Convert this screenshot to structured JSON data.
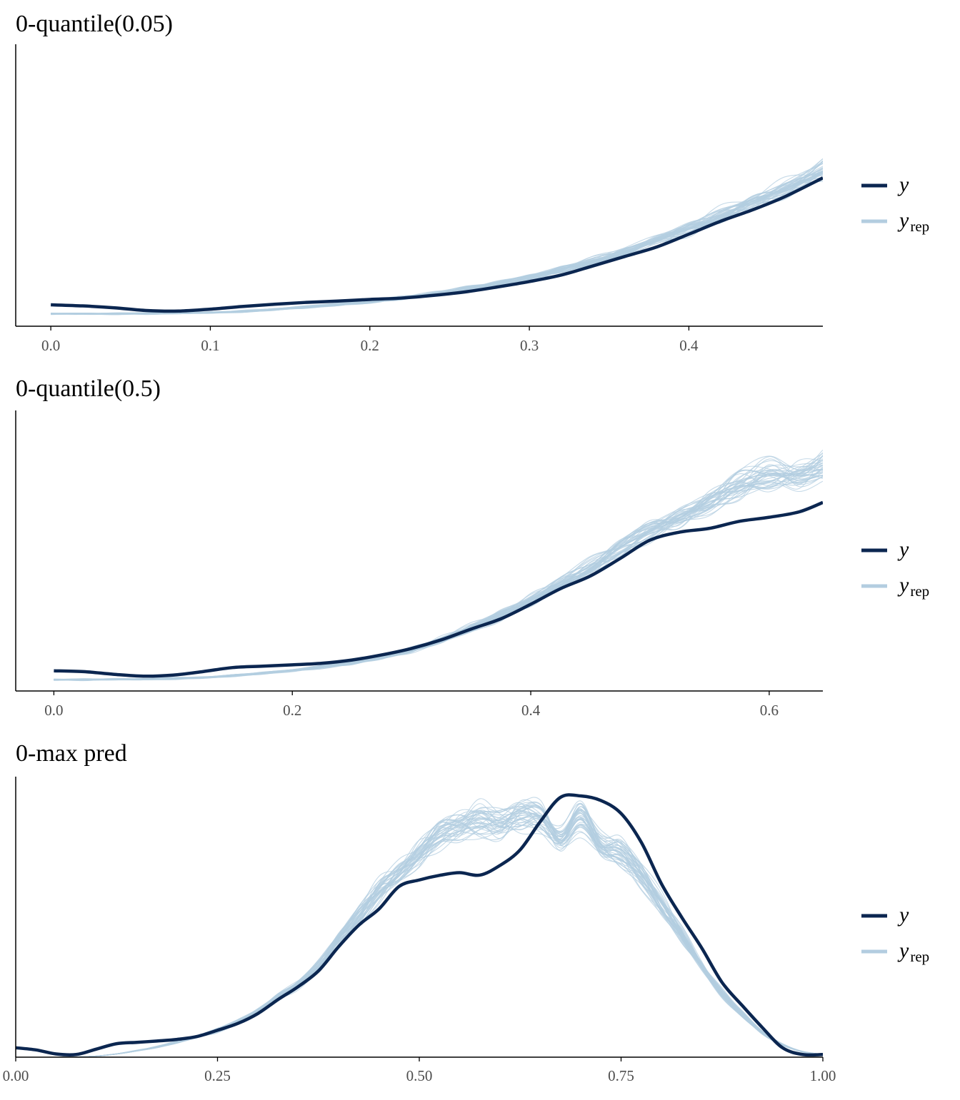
{
  "colors": {
    "y": "#0b2650",
    "yrep": "#b3cde0",
    "axis": "#000000",
    "tick_text": "#4d4d4d"
  },
  "legend": {
    "y_label": "y",
    "yrep_base": "y",
    "yrep_sub": "rep"
  },
  "chart_data": [
    {
      "type": "line",
      "title": "0-quantile(0.05)",
      "xlabel": "",
      "ylabel": "",
      "xlim": [
        -0.022,
        0.484
      ],
      "ylim": [
        0,
        1
      ],
      "xticks": [
        0.0,
        0.1,
        0.2,
        0.3,
        0.4
      ],
      "tick_labels": [
        "0.0",
        "0.1",
        "0.2",
        "0.3",
        "0.4"
      ],
      "legend_position": "right",
      "grid": false,
      "series": [
        {
          "name": "y",
          "x": [
            0.0,
            0.02,
            0.04,
            0.06,
            0.08,
            0.1,
            0.12,
            0.14,
            0.16,
            0.18,
            0.2,
            0.22,
            0.24,
            0.26,
            0.28,
            0.3,
            0.32,
            0.34,
            0.36,
            0.38,
            0.4,
            0.42,
            0.44,
            0.46,
            0.484
          ],
          "y": [
            0.079,
            0.075,
            0.068,
            0.058,
            0.056,
            0.063,
            0.073,
            0.081,
            0.088,
            0.093,
            0.099,
            0.104,
            0.114,
            0.127,
            0.145,
            0.165,
            0.189,
            0.223,
            0.258,
            0.293,
            0.34,
            0.388,
            0.43,
            0.478,
            0.548
          ]
        },
        {
          "name": "y_rep envelope",
          "x": [
            0.0,
            0.02,
            0.04,
            0.06,
            0.08,
            0.1,
            0.12,
            0.14,
            0.16,
            0.18,
            0.2,
            0.22,
            0.24,
            0.26,
            0.28,
            0.3,
            0.32,
            0.34,
            0.36,
            0.38,
            0.4,
            0.42,
            0.44,
            0.46,
            0.484
          ],
          "y": [
            0.046,
            0.046,
            0.046,
            0.047,
            0.048,
            0.05,
            0.055,
            0.062,
            0.07,
            0.08,
            0.091,
            0.104,
            0.119,
            0.136,
            0.157,
            0.18,
            0.207,
            0.24,
            0.275,
            0.315,
            0.36,
            0.41,
            0.455,
            0.505,
            0.575
          ]
        }
      ]
    },
    {
      "type": "line",
      "title": "0-quantile(0.5)",
      "xlabel": "",
      "ylabel": "",
      "xlim": [
        -0.032,
        0.645
      ],
      "ylim": [
        0,
        1
      ],
      "xticks": [
        0.0,
        0.2,
        0.4,
        0.6
      ],
      "tick_labels": [
        "0.0",
        "0.2",
        "0.4",
        "0.6"
      ],
      "legend_position": "right",
      "grid": false,
      "series": [
        {
          "name": "y",
          "x": [
            0.0,
            0.025,
            0.05,
            0.075,
            0.1,
            0.125,
            0.15,
            0.175,
            0.2,
            0.225,
            0.25,
            0.275,
            0.3,
            0.325,
            0.35,
            0.375,
            0.4,
            0.425,
            0.45,
            0.475,
            0.5,
            0.525,
            0.55,
            0.575,
            0.6,
            0.625,
            0.645
          ],
          "y": [
            0.075,
            0.072,
            0.062,
            0.055,
            0.059,
            0.072,
            0.087,
            0.092,
            0.097,
            0.103,
            0.115,
            0.134,
            0.158,
            0.19,
            0.23,
            0.268,
            0.322,
            0.38,
            0.427,
            0.492,
            0.56,
            0.59,
            0.604,
            0.63,
            0.645,
            0.665,
            0.7
          ]
        },
        {
          "name": "y_rep envelope",
          "x": [
            0.0,
            0.025,
            0.05,
            0.075,
            0.1,
            0.125,
            0.15,
            0.175,
            0.2,
            0.225,
            0.25,
            0.275,
            0.3,
            0.325,
            0.35,
            0.375,
            0.4,
            0.425,
            0.45,
            0.475,
            0.5,
            0.525,
            0.55,
            0.575,
            0.6,
            0.625,
            0.645
          ],
          "y": [
            0.042,
            0.042,
            0.043,
            0.044,
            0.046,
            0.05,
            0.057,
            0.066,
            0.077,
            0.09,
            0.106,
            0.126,
            0.153,
            0.19,
            0.236,
            0.28,
            0.338,
            0.4,
            0.458,
            0.53,
            0.6,
            0.644,
            0.7,
            0.77,
            0.8,
            0.8,
            0.83
          ]
        }
      ]
    },
    {
      "type": "line",
      "title": "0-max pred",
      "xlabel": "",
      "ylabel": "",
      "xlim": [
        0,
        1
      ],
      "ylim": [
        0,
        1
      ],
      "xticks": [
        0.0,
        0.25,
        0.5,
        0.75,
        1.0
      ],
      "tick_labels": [
        "0.00",
        "0.25",
        "0.50",
        "0.75",
        "1.00"
      ],
      "legend_position": "right",
      "grid": false,
      "series": [
        {
          "name": "y",
          "x": [
            0.0,
            0.025,
            0.05,
            0.075,
            0.1,
            0.125,
            0.15,
            0.175,
            0.2,
            0.225,
            0.25,
            0.275,
            0.3,
            0.325,
            0.35,
            0.375,
            0.4,
            0.425,
            0.45,
            0.475,
            0.5,
            0.525,
            0.55,
            0.575,
            0.6,
            0.625,
            0.65,
            0.675,
            0.7,
            0.725,
            0.75,
            0.775,
            0.8,
            0.825,
            0.85,
            0.875,
            0.9,
            0.925,
            0.95,
            0.975,
            1.0
          ],
          "y": [
            0.035,
            0.027,
            0.012,
            0.01,
            0.03,
            0.05,
            0.055,
            0.06,
            0.066,
            0.077,
            0.1,
            0.125,
            0.162,
            0.214,
            0.262,
            0.32,
            0.41,
            0.49,
            0.55,
            0.634,
            0.658,
            0.675,
            0.685,
            0.676,
            0.712,
            0.77,
            0.875,
            0.965,
            0.97,
            0.953,
            0.905,
            0.798,
            0.644,
            0.52,
            0.405,
            0.278,
            0.192,
            0.11,
            0.035,
            0.01,
            0.01
          ]
        },
        {
          "name": "y_rep envelope",
          "x": [
            0.0,
            0.025,
            0.05,
            0.075,
            0.1,
            0.125,
            0.15,
            0.175,
            0.2,
            0.225,
            0.25,
            0.275,
            0.3,
            0.325,
            0.35,
            0.375,
            0.4,
            0.425,
            0.45,
            0.475,
            0.5,
            0.525,
            0.55,
            0.575,
            0.6,
            0.625,
            0.65,
            0.675,
            0.7,
            0.725,
            0.75,
            0.775,
            0.8,
            0.825,
            0.85,
            0.875,
            0.9,
            0.925,
            0.95,
            0.975,
            1.0
          ],
          "y": [
            0.0,
            0.0,
            0.0,
            0.001,
            0.004,
            0.012,
            0.024,
            0.038,
            0.056,
            0.077,
            0.1,
            0.13,
            0.168,
            0.222,
            0.272,
            0.338,
            0.44,
            0.52,
            0.61,
            0.685,
            0.755,
            0.83,
            0.86,
            0.876,
            0.865,
            0.902,
            0.895,
            0.8,
            0.885,
            0.79,
            0.76,
            0.68,
            0.57,
            0.45,
            0.333,
            0.238,
            0.159,
            0.092,
            0.047,
            0.02,
            0.01
          ]
        }
      ]
    }
  ]
}
